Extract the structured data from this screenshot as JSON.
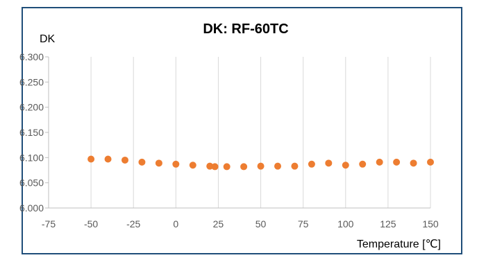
{
  "chart_data": {
    "type": "scatter",
    "title": "DK: RF-60TC",
    "ylabel": "DK",
    "xlabel": "Temperature [℃]",
    "xlim": [
      -75,
      150
    ],
    "ylim": [
      6.0,
      6.3
    ],
    "x_ticks": [
      "-75",
      "-50",
      "-25",
      "0",
      "25",
      "50",
      "75",
      "100",
      "125",
      "150"
    ],
    "y_ticks": [
      "6.000",
      "6.050",
      "6.100",
      "6.150",
      "6.200",
      "6.250",
      "6.300"
    ],
    "grid": "vertical",
    "marker_color": "#ed7d31",
    "series": [
      {
        "x": [
          -50,
          -40,
          -30,
          -20,
          -10,
          0,
          10,
          20,
          23,
          30,
          40,
          50,
          60,
          70,
          80,
          90,
          100,
          110,
          120,
          130,
          140,
          150
        ],
        "y": [
          6.097,
          6.097,
          6.095,
          6.091,
          6.089,
          6.087,
          6.085,
          6.083,
          6.082,
          6.082,
          6.082,
          6.083,
          6.083,
          6.083,
          6.087,
          6.089,
          6.085,
          6.087,
          6.091,
          6.091,
          6.089,
          6.091
        ]
      }
    ]
  }
}
